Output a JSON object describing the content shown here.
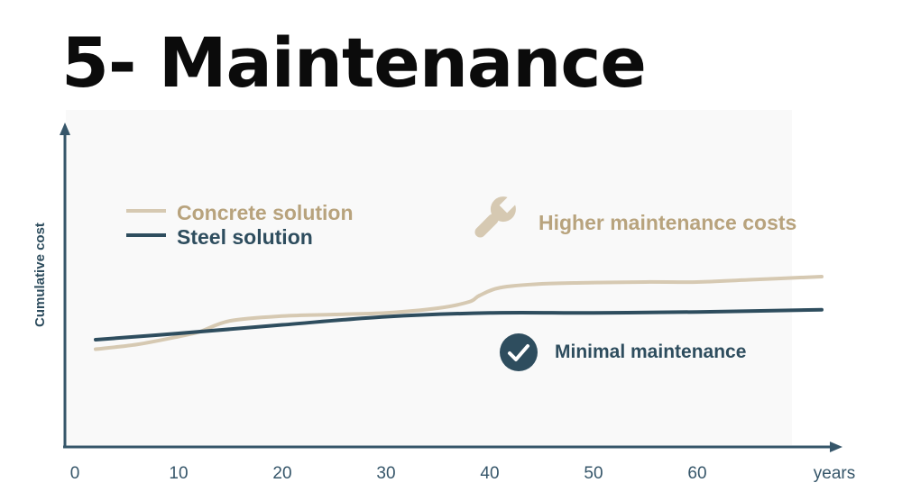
{
  "title": "5- Maintenance",
  "colors": {
    "concrete": "#d6c9b2",
    "concrete_text": "#b8a37d",
    "steel": "#2e4d5e",
    "axis": "#36566a",
    "plot_bg": "#f9f9f9"
  },
  "chart_data": {
    "type": "line",
    "xlabel": "years",
    "ylabel": "Cumulative cost",
    "xlim": [
      0,
      70
    ],
    "ylim": [
      0,
      100
    ],
    "xticks": [
      "0",
      "10",
      "20",
      "30",
      "40",
      "50",
      "60"
    ],
    "xtick_values": [
      0,
      10,
      20,
      30,
      40,
      50,
      60
    ],
    "series": [
      {
        "name": "Concrete solution",
        "x": [
          2,
          6,
          10,
          12,
          15,
          20,
          25,
          30,
          35,
          38,
          39,
          41,
          45,
          50,
          55,
          60,
          65,
          72
        ],
        "y": [
          31,
          32.5,
          35,
          36.5,
          40,
          41.5,
          42,
          42.5,
          44,
          46,
          48,
          50.5,
          51.7,
          52.1,
          52.3,
          52.3,
          53,
          54
        ]
      },
      {
        "name": "Steel solution",
        "x": [
          2,
          10,
          20,
          30,
          40,
          50,
          60,
          72
        ],
        "y": [
          34,
          36,
          38.7,
          41.3,
          42.5,
          42.5,
          42.8,
          43.5
        ]
      }
    ],
    "legend": {
      "placement": "top-left",
      "entries": [
        "Concrete solution",
        "Steel solution"
      ]
    },
    "annotations": [
      {
        "text": "Higher maintenance costs",
        "icon": "wrench-icon",
        "color": "#b8a37d"
      },
      {
        "text": "Minimal maintenance",
        "icon": "check-circle-icon",
        "color": "#2e4d5e"
      }
    ],
    "grid": false
  }
}
